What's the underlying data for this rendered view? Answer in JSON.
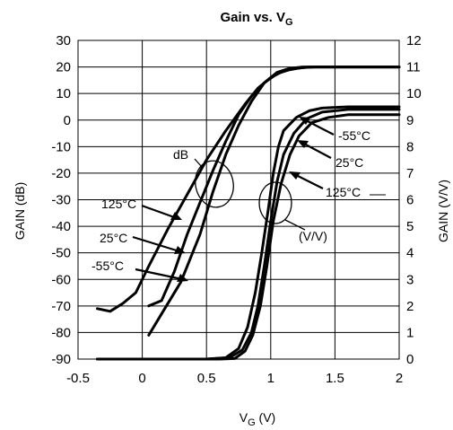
{
  "chart_data": {
    "type": "line",
    "title": "Gain vs. V",
    "title_subscript": "G",
    "xlabel": "V",
    "xlabel_subscript": "G",
    "xlabel_unit": " (V)",
    "ylabel_left": "GAIN (dB)",
    "ylabel_right": "GAIN (V/V)",
    "xlim": [
      -0.5,
      2
    ],
    "ylim_left": [
      -90,
      30
    ],
    "ylim_right": [
      0,
      12
    ],
    "x_ticks": [
      "-0.5",
      "0",
      "0.5",
      "1",
      "1.5",
      "2"
    ],
    "y_left_ticks": [
      "30",
      "20",
      "10",
      "0",
      "-10",
      "-20",
      "-30",
      "-40",
      "-50",
      "-60",
      "-70",
      "-80",
      "-90"
    ],
    "y_right_ticks": [
      "12",
      "11",
      "10",
      "9",
      "8",
      "7",
      "6",
      "5",
      "4",
      "3",
      "2",
      "1",
      "0"
    ],
    "grid": true,
    "series": [
      {
        "name": "125°C",
        "group": "dB",
        "axis": "left",
        "x": [
          -0.35,
          -0.25,
          -0.15,
          -0.05,
          0.05,
          0.2,
          0.35,
          0.5,
          0.65,
          0.8,
          0.9,
          1.0,
          1.1,
          1.2,
          1.3,
          1.4,
          1.6,
          2.0
        ],
        "y": [
          -71,
          -72,
          -69,
          -65,
          -55,
          -41,
          -28,
          -15,
          -4,
          6,
          12,
          16,
          18.5,
          19.5,
          20,
          20,
          20,
          20
        ]
      },
      {
        "name": "25°C",
        "group": "dB",
        "axis": "left",
        "x": [
          0.05,
          0.15,
          0.25,
          0.35,
          0.45,
          0.55,
          0.65,
          0.75,
          0.85,
          0.95,
          1.05,
          1.15,
          1.25,
          1.35,
          1.5,
          2.0
        ],
        "y": [
          -70,
          -68,
          -57,
          -43,
          -31,
          -19,
          -8,
          2,
          9,
          14,
          17.5,
          19,
          19.8,
          20,
          20,
          20
        ]
      },
      {
        "name": "-55°C",
        "group": "dB",
        "axis": "left",
        "x": [
          0.05,
          0.15,
          0.3,
          0.45,
          0.55,
          0.65,
          0.75,
          0.85,
          0.95,
          1.05,
          1.15,
          1.25,
          1.35,
          1.5,
          2.0
        ],
        "y": [
          -81,
          -73,
          -61,
          -43,
          -27,
          -13,
          -2,
          7,
          14,
          18,
          19.5,
          20,
          20,
          20,
          20
        ]
      },
      {
        "name": "-55°C",
        "group": "V/V",
        "axis": "right",
        "x": [
          -0.35,
          0.5,
          0.65,
          0.75,
          0.82,
          0.88,
          0.93,
          0.98,
          1.02,
          1.06,
          1.1,
          1.2,
          1.3,
          1.4,
          1.6,
          2.0
        ],
        "y": [
          0,
          0,
          0.05,
          0.4,
          1.2,
          2.5,
          4.0,
          5.6,
          7.0,
          8.0,
          8.6,
          9.1,
          9.35,
          9.45,
          9.5,
          9.5
        ]
      },
      {
        "name": "25°C",
        "group": "V/V",
        "axis": "right",
        "x": [
          -0.35,
          0.5,
          0.68,
          0.78,
          0.85,
          0.9,
          0.95,
          1.0,
          1.05,
          1.1,
          1.18,
          1.28,
          1.4,
          1.6,
          2.0
        ],
        "y": [
          0,
          0,
          0.05,
          0.35,
          1.0,
          2.0,
          3.5,
          5.2,
          6.7,
          7.7,
          8.5,
          9.05,
          9.3,
          9.4,
          9.4
        ]
      },
      {
        "name": "125°C",
        "group": "V/V",
        "axis": "right",
        "x": [
          -0.35,
          0.6,
          0.72,
          0.8,
          0.86,
          0.92,
          0.97,
          1.02,
          1.08,
          1.15,
          1.22,
          1.32,
          1.45,
          1.6,
          2.0
        ],
        "y": [
          0,
          0,
          0.02,
          0.3,
          0.9,
          2.0,
          3.5,
          5.2,
          6.6,
          7.7,
          8.4,
          8.9,
          9.1,
          9.2,
          9.2
        ]
      }
    ],
    "annotations": {
      "db_group": "dB",
      "vv_group": "(V/V)",
      "db_125": "125°C",
      "db_25": "25°C",
      "db_m55": "-55°C",
      "vv_m55": "-55°C",
      "vv_25": "25°C",
      "vv_125": "125°C"
    }
  }
}
